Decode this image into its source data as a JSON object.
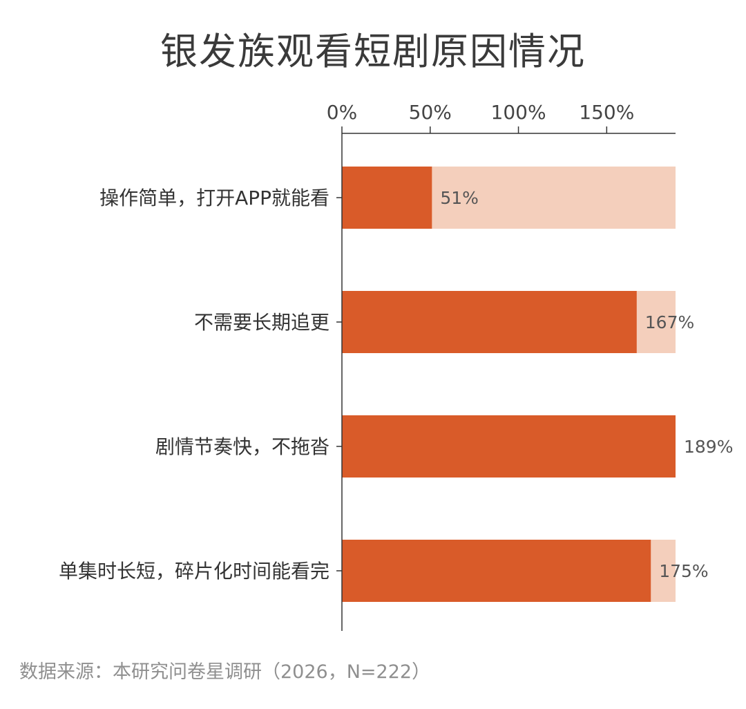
{
  "chart_data": {
    "type": "bar",
    "orientation": "horizontal",
    "title": "银发族观看短剧原因情况",
    "categories": [
      "操作简单，打开APP就能看",
      "不需要长期追更",
      "剧情节奏快，不拖沓",
      "单集时长短，碎片化时间能看完"
    ],
    "values": [
      51,
      167,
      189,
      175
    ],
    "value_labels": [
      "51%",
      "167%",
      "189%",
      "175%"
    ],
    "xlim": [
      0,
      189
    ],
    "x_ticks": [
      0,
      50,
      100,
      150
    ],
    "x_tick_labels": [
      "0%",
      "50%",
      "100%",
      "150%"
    ],
    "x_axis_position": "top",
    "grid": false,
    "legend": "none"
  },
  "colors": {
    "bar": "#d95b29",
    "bar_background": "#f4cfbc",
    "axis": "#333333",
    "title": "#3a3a3a",
    "note": "#8f8f8f"
  },
  "source_note": "数据来源：本研究问卷星调研（2026，N=222）"
}
